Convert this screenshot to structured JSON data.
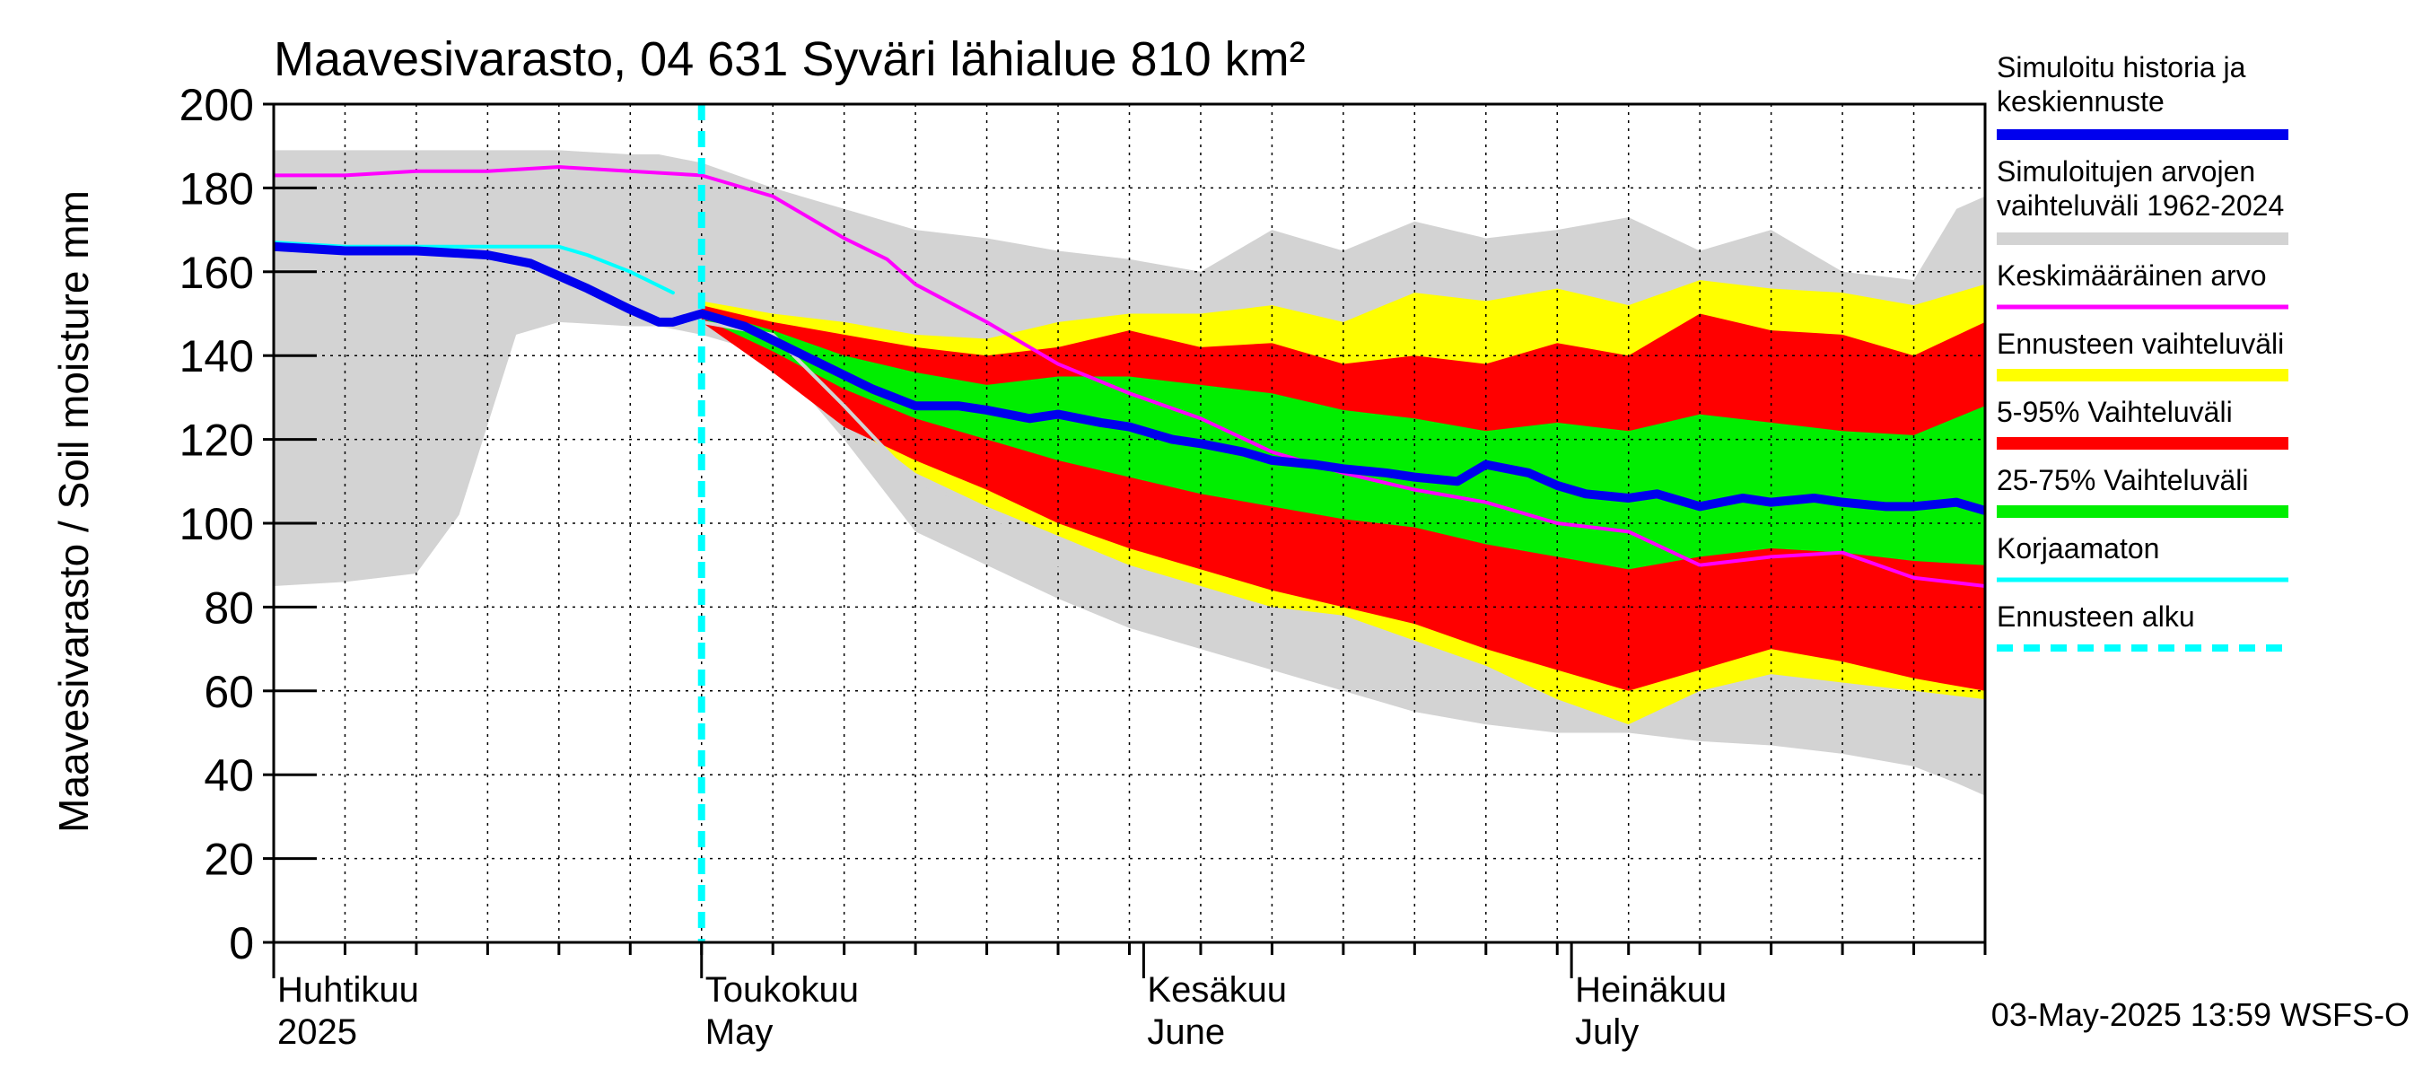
{
  "chart_data": {
    "type": "area",
    "title": "Maavesivarasto, 04 631 Syväri lähialue 810 km²",
    "ylabel": "Maavesivarasto / Soil moisture   mm",
    "ylim": [
      0,
      200
    ],
    "yticks": [
      0,
      20,
      40,
      60,
      80,
      100,
      120,
      140,
      160,
      180,
      200
    ],
    "x_domain_days": [
      0,
      120
    ],
    "months": [
      {
        "day": 0,
        "line1": "Huhtikuu",
        "line2": "2025"
      },
      {
        "day": 30,
        "line1": "Toukokuu",
        "line2": "May"
      },
      {
        "day": 61,
        "line1": "Kesäkuu",
        "line2": "June"
      },
      {
        "day": 91,
        "line1": "Heinäkuu",
        "line2": "July"
      }
    ],
    "forecast_start_day": 30,
    "timestamp": "03-May-2025 13:59 WSFS-O",
    "series": [
      {
        "name": "Simuloitujen arvojen vaihteluväli 1962-2024",
        "kind": "band",
        "color": "#d3d3d3",
        "x": [
          0,
          5,
          10,
          13,
          17,
          20,
          25,
          27,
          30,
          35,
          40,
          45,
          50,
          55,
          60,
          65,
          70,
          75,
          80,
          85,
          90,
          95,
          100,
          105,
          110,
          115,
          118,
          120
        ],
        "upper": [
          189,
          189,
          189,
          189,
          189,
          189,
          188,
          188,
          186,
          180,
          175,
          170,
          168,
          165,
          163,
          160,
          170,
          165,
          172,
          168,
          170,
          173,
          165,
          170,
          160,
          158,
          175,
          178
        ],
        "lower": [
          85,
          86,
          88,
          102,
          145,
          148,
          147,
          147,
          145,
          140,
          120,
          98,
          90,
          82,
          75,
          70,
          65,
          60,
          55,
          52,
          50,
          50,
          48,
          47,
          45,
          42,
          38,
          35
        ]
      },
      {
        "name": "Ennusteen vaihteluväli",
        "kind": "band",
        "color": "#ffff00",
        "x": [
          30,
          35,
          40,
          45,
          50,
          55,
          60,
          65,
          70,
          75,
          80,
          85,
          90,
          95,
          100,
          105,
          110,
          115,
          120
        ],
        "upper": [
          153,
          150,
          148,
          145,
          144,
          148,
          150,
          150,
          152,
          148,
          155,
          153,
          156,
          152,
          158,
          156,
          155,
          152,
          157
        ],
        "lower": [
          148,
          138,
          125,
          112,
          104,
          97,
          90,
          85,
          80,
          78,
          72,
          66,
          58,
          52,
          60,
          64,
          62,
          60,
          58
        ]
      },
      {
        "name": "5-95% Vaihteluväli",
        "kind": "band",
        "color": "#ff0000",
        "x": [
          30,
          35,
          40,
          45,
          50,
          55,
          60,
          65,
          70,
          75,
          80,
          85,
          90,
          95,
          100,
          105,
          110,
          115,
          120
        ],
        "upper": [
          152,
          148,
          145,
          142,
          140,
          142,
          146,
          142,
          143,
          138,
          140,
          138,
          143,
          140,
          150,
          146,
          145,
          140,
          148
        ],
        "lower": [
          148,
          136,
          123,
          115,
          108,
          100,
          94,
          89,
          84,
          80,
          76,
          70,
          65,
          60,
          65,
          70,
          67,
          63,
          60
        ]
      },
      {
        "name": "25-75% Vaihteluväli",
        "kind": "band",
        "color": "#00ee00",
        "x": [
          30,
          35,
          40,
          45,
          50,
          55,
          60,
          65,
          70,
          75,
          80,
          85,
          90,
          95,
          100,
          105,
          110,
          115,
          120
        ],
        "upper": [
          151,
          146,
          140,
          136,
          133,
          135,
          135,
          133,
          131,
          127,
          125,
          122,
          124,
          122,
          126,
          124,
          122,
          121,
          128
        ],
        "lower": [
          149,
          141,
          132,
          125,
          120,
          115,
          111,
          107,
          104,
          101,
          99,
          95,
          92,
          89,
          92,
          94,
          93,
          91,
          90
        ]
      },
      {
        "name": "Keskimääräinen arvo",
        "kind": "line",
        "color": "#ff00ff",
        "width": 4,
        "x": [
          0,
          5,
          10,
          15,
          20,
          25,
          30,
          35,
          40,
          43,
          45,
          50,
          55,
          60,
          65,
          70,
          75,
          80,
          85,
          90,
          95,
          100,
          105,
          110,
          115,
          120
        ],
        "y": [
          183,
          183,
          184,
          184,
          185,
          184,
          183,
          178,
          168,
          163,
          157,
          148,
          138,
          131,
          125,
          117,
          112,
          108,
          105,
          100,
          98,
          90,
          92,
          93,
          87,
          85
        ]
      },
      {
        "name": "Korjaamaton",
        "kind": "line",
        "color": "#00ffff",
        "width": 4,
        "x": [
          0,
          5,
          10,
          15,
          20,
          22,
          25,
          28
        ],
        "y": [
          167,
          166,
          166,
          166,
          166,
          164,
          160,
          155
        ]
      },
      {
        "name": "Korjaamaton (ennuste)",
        "kind": "line",
        "color": "#d3d3d3",
        "width": 4,
        "x": [
          30,
          35,
          40,
          45,
          50,
          55
        ],
        "y": [
          148,
          145,
          128,
          110,
          103,
          90
        ]
      },
      {
        "name": "Simuloitu historia ja keskiennuste",
        "kind": "line",
        "color": "#0000ee",
        "width": 10,
        "x": [
          0,
          5,
          10,
          15,
          18,
          20,
          22,
          25,
          27,
          28,
          30,
          33,
          36,
          39,
          42,
          45,
          48,
          50,
          53,
          55,
          58,
          60,
          63,
          65,
          68,
          70,
          73,
          75,
          78,
          80,
          83,
          85,
          88,
          90,
          92,
          95,
          97,
          100,
          103,
          105,
          108,
          110,
          113,
          115,
          118,
          120
        ],
        "y": [
          166,
          165,
          165,
          164,
          162,
          159,
          156,
          151,
          148,
          148,
          150,
          147,
          142,
          137,
          132,
          128,
          128,
          127,
          125,
          126,
          124,
          123,
          120,
          119,
          117,
          115,
          114,
          113,
          112,
          111,
          110,
          114,
          112,
          109,
          107,
          106,
          107,
          104,
          106,
          105,
          106,
          105,
          104,
          104,
          105,
          103
        ]
      }
    ],
    "legend": [
      {
        "line1": "Simuloitu historia ja",
        "line2": "keskiennuste",
        "color": "#0000ee",
        "style": "thick"
      },
      {
        "line1": "Simuloitujen arvojen",
        "line2": "vaihteluväli 1962-2024",
        "color": "#d3d3d3",
        "style": "band"
      },
      {
        "line1": "Keskimääräinen arvo",
        "line2": "",
        "color": "#ff00ff",
        "style": "line"
      },
      {
        "line1": "Ennusteen vaihteluväli",
        "line2": "",
        "color": "#ffff00",
        "style": "band"
      },
      {
        "line1": "5-95% Vaihteluväli",
        "line2": "",
        "color": "#ff0000",
        "style": "band"
      },
      {
        "line1": "25-75% Vaihteluväli",
        "line2": "",
        "color": "#00ee00",
        "style": "band"
      },
      {
        "line1": "Korjaamaton",
        "line2": "",
        "color": "#00ffff",
        "style": "line"
      },
      {
        "line1": "Ennusteen alku",
        "line2": "",
        "color": "#00ffff",
        "style": "dashed"
      }
    ]
  }
}
